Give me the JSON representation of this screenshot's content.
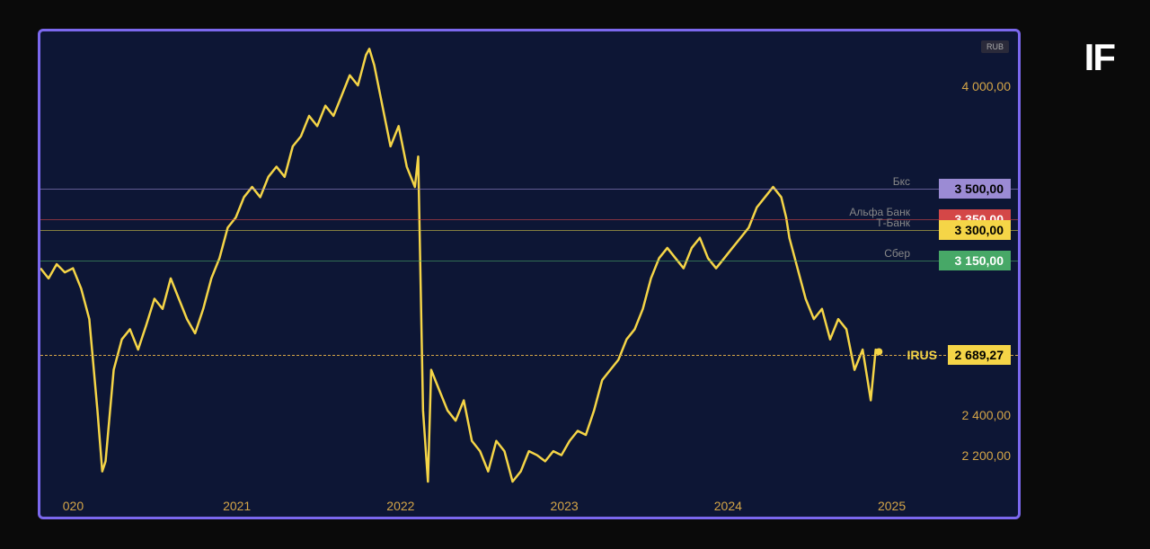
{
  "logo": "IF",
  "chart": {
    "type": "line",
    "currency_label": "RUB",
    "background_color": "#0d1635",
    "border_color": "#7b68ee",
    "line_color": "#f5d547",
    "line_width": 2.5,
    "axis_label_color": "#d4a547",
    "axis_label_fontsize": 14,
    "y_axis": {
      "min": 2000,
      "max": 4200,
      "ticks": [
        {
          "value": 4000,
          "label": "4 000,00"
        },
        {
          "value": 2400,
          "label": "2 400,00"
        },
        {
          "value": 2200,
          "label": "2 200,00"
        }
      ]
    },
    "x_axis": {
      "min": 2019.8,
      "max": 2025.2,
      "ticks": [
        {
          "value": 2020,
          "label": "020"
        },
        {
          "value": 2021,
          "label": "2021"
        },
        {
          "value": 2022,
          "label": "2022"
        },
        {
          "value": 2023,
          "label": "2023"
        },
        {
          "value": 2024,
          "label": "2024"
        },
        {
          "value": 2025,
          "label": "2025"
        }
      ]
    },
    "targets": [
      {
        "label": "Бкс",
        "value": 3500,
        "badge_text": "3 500,00",
        "line_color": "#9b8bd4",
        "badge_bg": "#9b8bd4",
        "badge_fg": "#000"
      },
      {
        "label": "Альфа Банк",
        "value": 3350,
        "badge_text": "3 350,00",
        "line_color": "#d44747",
        "badge_bg": "#d44747",
        "badge_fg": "#fff"
      },
      {
        "label": "Т-Банк",
        "value": 3300,
        "badge_text": "3 300,00",
        "line_color": "#d4c547",
        "badge_bg": "#f5d547",
        "badge_fg": "#000"
      },
      {
        "label": "Сбер",
        "value": 3150,
        "badge_text": "3 150,00",
        "line_color": "#47a867",
        "badge_bg": "#47a867",
        "badge_fg": "#fff"
      }
    ],
    "current": {
      "ticker": "IRUS",
      "value": 2689.27,
      "label": "2 689,27",
      "line_color": "#d4a547",
      "badge_bg": "#f5d547",
      "badge_fg": "#000"
    },
    "series": [
      [
        2019.8,
        3100
      ],
      [
        2019.85,
        3050
      ],
      [
        2019.9,
        3120
      ],
      [
        2019.95,
        3080
      ],
      [
        2020.0,
        3100
      ],
      [
        2020.05,
        3000
      ],
      [
        2020.1,
        2850
      ],
      [
        2020.15,
        2400
      ],
      [
        2020.18,
        2100
      ],
      [
        2020.2,
        2150
      ],
      [
        2020.25,
        2600
      ],
      [
        2020.3,
        2750
      ],
      [
        2020.35,
        2800
      ],
      [
        2020.4,
        2700
      ],
      [
        2020.45,
        2820
      ],
      [
        2020.5,
        2950
      ],
      [
        2020.55,
        2900
      ],
      [
        2020.6,
        3050
      ],
      [
        2020.65,
        2950
      ],
      [
        2020.7,
        2850
      ],
      [
        2020.75,
        2780
      ],
      [
        2020.8,
        2900
      ],
      [
        2020.85,
        3050
      ],
      [
        2020.9,
        3150
      ],
      [
        2020.95,
        3300
      ],
      [
        2021.0,
        3350
      ],
      [
        2021.05,
        3450
      ],
      [
        2021.1,
        3500
      ],
      [
        2021.15,
        3450
      ],
      [
        2021.2,
        3550
      ],
      [
        2021.25,
        3600
      ],
      [
        2021.3,
        3550
      ],
      [
        2021.35,
        3700
      ],
      [
        2021.4,
        3750
      ],
      [
        2021.45,
        3850
      ],
      [
        2021.5,
        3800
      ],
      [
        2021.55,
        3900
      ],
      [
        2021.6,
        3850
      ],
      [
        2021.65,
        3950
      ],
      [
        2021.7,
        4050
      ],
      [
        2021.75,
        4000
      ],
      [
        2021.8,
        4150
      ],
      [
        2021.82,
        4180
      ],
      [
        2021.85,
        4100
      ],
      [
        2021.9,
        3900
      ],
      [
        2021.95,
        3700
      ],
      [
        2022.0,
        3800
      ],
      [
        2022.05,
        3600
      ],
      [
        2022.1,
        3500
      ],
      [
        2022.12,
        3650
      ],
      [
        2022.15,
        2400
      ],
      [
        2022.18,
        2050
      ],
      [
        2022.2,
        2600
      ],
      [
        2022.25,
        2500
      ],
      [
        2022.3,
        2400
      ],
      [
        2022.35,
        2350
      ],
      [
        2022.4,
        2450
      ],
      [
        2022.45,
        2250
      ],
      [
        2022.5,
        2200
      ],
      [
        2022.55,
        2100
      ],
      [
        2022.6,
        2250
      ],
      [
        2022.65,
        2200
      ],
      [
        2022.7,
        2050
      ],
      [
        2022.75,
        2100
      ],
      [
        2022.8,
        2200
      ],
      [
        2022.85,
        2180
      ],
      [
        2022.9,
        2150
      ],
      [
        2022.95,
        2200
      ],
      [
        2023.0,
        2180
      ],
      [
        2023.05,
        2250
      ],
      [
        2023.1,
        2300
      ],
      [
        2023.15,
        2280
      ],
      [
        2023.2,
        2400
      ],
      [
        2023.25,
        2550
      ],
      [
        2023.3,
        2600
      ],
      [
        2023.35,
        2650
      ],
      [
        2023.4,
        2750
      ],
      [
        2023.45,
        2800
      ],
      [
        2023.5,
        2900
      ],
      [
        2023.55,
        3050
      ],
      [
        2023.6,
        3150
      ],
      [
        2023.65,
        3200
      ],
      [
        2023.7,
        3150
      ],
      [
        2023.75,
        3100
      ],
      [
        2023.8,
        3200
      ],
      [
        2023.85,
        3250
      ],
      [
        2023.9,
        3150
      ],
      [
        2023.95,
        3100
      ],
      [
        2024.0,
        3150
      ],
      [
        2024.05,
        3200
      ],
      [
        2024.1,
        3250
      ],
      [
        2024.15,
        3300
      ],
      [
        2024.2,
        3400
      ],
      [
        2024.25,
        3450
      ],
      [
        2024.3,
        3500
      ],
      [
        2024.35,
        3450
      ],
      [
        2024.38,
        3350
      ],
      [
        2024.4,
        3250
      ],
      [
        2024.45,
        3100
      ],
      [
        2024.5,
        2950
      ],
      [
        2024.55,
        2850
      ],
      [
        2024.6,
        2900
      ],
      [
        2024.65,
        2750
      ],
      [
        2024.7,
        2850
      ],
      [
        2024.75,
        2800
      ],
      [
        2024.8,
        2600
      ],
      [
        2024.85,
        2700
      ],
      [
        2024.88,
        2550
      ],
      [
        2024.9,
        2450
      ],
      [
        2024.93,
        2700
      ],
      [
        2024.95,
        2689.27
      ]
    ]
  }
}
